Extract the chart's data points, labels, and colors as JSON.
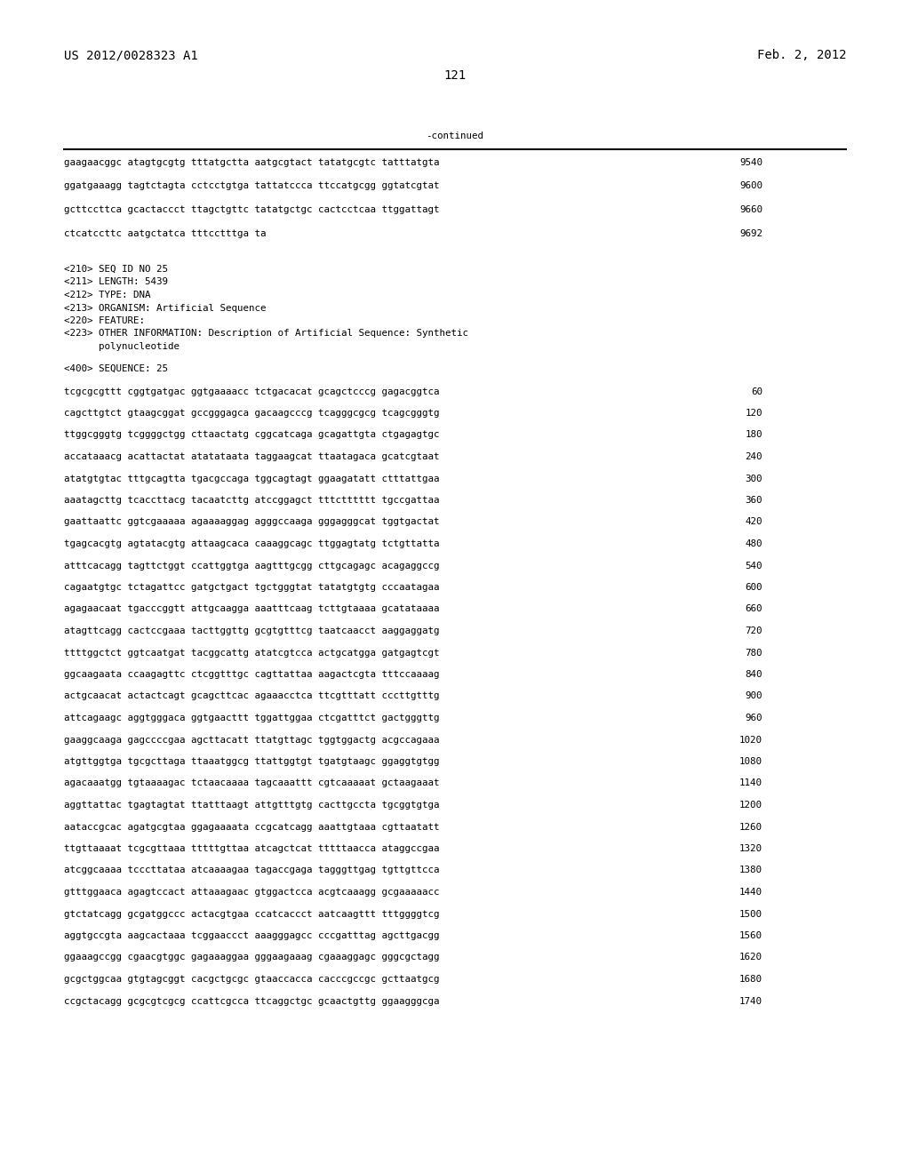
{
  "header_left": "US 2012/0028323 A1",
  "header_right": "Feb. 2, 2012",
  "page_number": "121",
  "continued_label": "-continued",
  "background_color": "#ffffff",
  "text_color": "#000000",
  "font_size": 7.8,
  "continued_lines": [
    [
      "gaagaacggc atagtgcgtg tttatgctta aatgcgtact tatatgcgtc tatttatgta",
      "9540"
    ],
    [
      "ggatgaaagg tagtctagta cctcctgtga tattatccca ttccatgcgg ggtatcgtat",
      "9600"
    ],
    [
      "gcttccttca gcactaccct ttagctgttc tatatgctgc cactcctcaa ttggattagt",
      "9660"
    ],
    [
      "ctcatccttc aatgctatca tttcctttga ta",
      "9692"
    ]
  ],
  "metadata_lines": [
    "<210> SEQ ID NO 25",
    "<211> LENGTH: 5439",
    "<212> TYPE: DNA",
    "<213> ORGANISM: Artificial Sequence",
    "<220> FEATURE:",
    "<223> OTHER INFORMATION: Description of Artificial Sequence: Synthetic",
    "      polynucleotide"
  ],
  "sequence_label": "<400> SEQUENCE: 25",
  "sequence_lines": [
    [
      "tcgcgcgttt cggtgatgac ggtgaaaacc tctgacacat gcagctcccg gagacggtca",
      "60"
    ],
    [
      "cagcttgtct gtaagcggat gccgggagca gacaagcccg tcagggcgcg tcagcgggtg",
      "120"
    ],
    [
      "ttggcgggtg tcggggctgg cttaactatg cggcatcaga gcagattgta ctgagagtgc",
      "180"
    ],
    [
      "accataaacg acattactat atatataata taggaagcat ttaatagaca gcatcgtaat",
      "240"
    ],
    [
      "atatgtgtac tttgcagtta tgacgccaga tggcagtagt ggaagatatt ctttattgaa",
      "300"
    ],
    [
      "aaatagcttg tcaccttacg tacaatcttg atccggagct tttctttttt tgccgattaa",
      "360"
    ],
    [
      "gaattaattc ggtcgaaaaa agaaaaggag agggccaaga gggagggcat tggtgactat",
      "420"
    ],
    [
      "tgagcacgtg agtatacgtg attaagcaca caaaggcagc ttggagtatg tctgttatta",
      "480"
    ],
    [
      "atttcacagg tagttctggt ccattggtga aagtttgcgg cttgcagagc acagaggccg",
      "540"
    ],
    [
      "cagaatgtgc tctagattcc gatgctgact tgctgggtat tatatgtgtg cccaatagaa",
      "600"
    ],
    [
      "agagaacaat tgacccggtt attgcaagga aaatttcaag tcttgtaaaa gcatataaaa",
      "660"
    ],
    [
      "atagttcagg cactccgaaa tacttggttg gcgtgtttcg taatcaacct aaggaggatg",
      "720"
    ],
    [
      "ttttggctct ggtcaatgat tacggcattg atatcgtcca actgcatgga gatgagtcgt",
      "780"
    ],
    [
      "ggcaagaata ccaagagttc ctcggtttgc cagttattaa aagactcgta tttccaaaag",
      "840"
    ],
    [
      "actgcaacat actactcagt gcagcttcac agaaacctca ttcgtttatt cccttgtttg",
      "900"
    ],
    [
      "attcagaagc aggtgggaca ggtgaacttt tggattggaa ctcgatttct gactgggttg",
      "960"
    ],
    [
      "gaaggcaaga gagccccgaa agcttacatt ttatgttagc tggtggactg acgccagaaa",
      "1020"
    ],
    [
      "atgttggtga tgcgcttaga ttaaatggcg ttattggtgt tgatgtaagc ggaggtgtgg",
      "1080"
    ],
    [
      "agacaaatgg tgtaaaagac tctaacaaaa tagcaaattt cgtcaaaaat gctaagaaat",
      "1140"
    ],
    [
      "aggttattac tgagtagtat ttatttaagt attgtttgtg cacttgccta tgcggtgtga",
      "1200"
    ],
    [
      "aataccgcac agatgcgtaa ggagaaaata ccgcatcagg aaattgtaaa cgttaatatt",
      "1260"
    ],
    [
      "ttgttaaaat tcgcgttaaa tttttgttaa atcagctcat tttttaacca ataggccgaa",
      "1320"
    ],
    [
      "atcggcaaaa tcccttataa atcaaaagaa tagaccgaga tagggttgag tgttgttcca",
      "1380"
    ],
    [
      "gtttggaaca agagtccact attaaagaac gtggactcca acgtcaaagg gcgaaaaacc",
      "1440"
    ],
    [
      "gtctatcagg gcgatggccc actacgtgaa ccatcaccct aatcaagttt tttggggtcg",
      "1500"
    ],
    [
      "aggtgccgta aagcactaaa tcggaaccct aaagggagcc cccgatttag agcttgacgg",
      "1560"
    ],
    [
      "ggaaagccgg cgaacgtggc gagaaaggaa gggaagaaag cgaaaggagc gggcgctagg",
      "1620"
    ],
    [
      "gcgctggcaa gtgtagcggt cacgctgcgc gtaaccacca cacccgccgc gcttaatgcg",
      "1680"
    ],
    [
      "ccgctacagg gcgcgtcgcg ccattcgcca ttcaggctgc gcaactgttg ggaagggcga",
      "1740"
    ]
  ]
}
